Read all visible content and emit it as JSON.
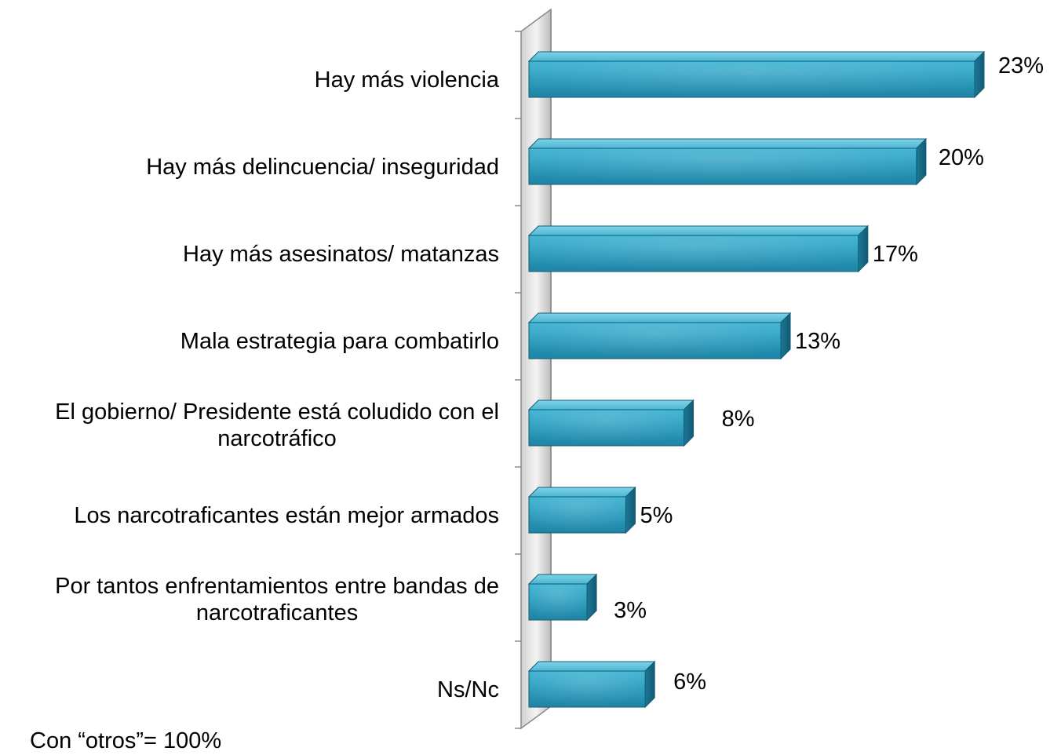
{
  "chart_data": {
    "type": "bar",
    "orientation": "horizontal",
    "style": "3d",
    "categories": [
      [
        "Hay más violencia"
      ],
      [
        "Hay más delincuencia/ inseguridad"
      ],
      [
        "Hay más asesinatos/ matanzas"
      ],
      [
        "Mala estrategia para combatirlo"
      ],
      [
        "El gobierno/ Presidente está coludido con el",
        "narcotráfico"
      ],
      [
        "Los narcotraficantes están mejor armados"
      ],
      [
        "Por tantos enfrentamientos entre bandas de",
        "narcotraficantes"
      ],
      [
        "Ns/Nc"
      ]
    ],
    "values": [
      23,
      20,
      17,
      13,
      8,
      5,
      3,
      6
    ],
    "value_labels": [
      "23%",
      "20%",
      "17%",
      "13%",
      "8%",
      "5%",
      "3%",
      "6%"
    ],
    "unit": "%",
    "xlim": [
      0,
      23
    ],
    "axis_visible": false,
    "grid": false,
    "legend": "none",
    "colors": {
      "bar_front": "#2a9bbd",
      "bar_top": "#5fc3dd",
      "bar_side": "#176a86",
      "bar_edge": "#145d74",
      "wall": "#e0e0e0"
    }
  },
  "footnote": "Con “otros”= 100%"
}
